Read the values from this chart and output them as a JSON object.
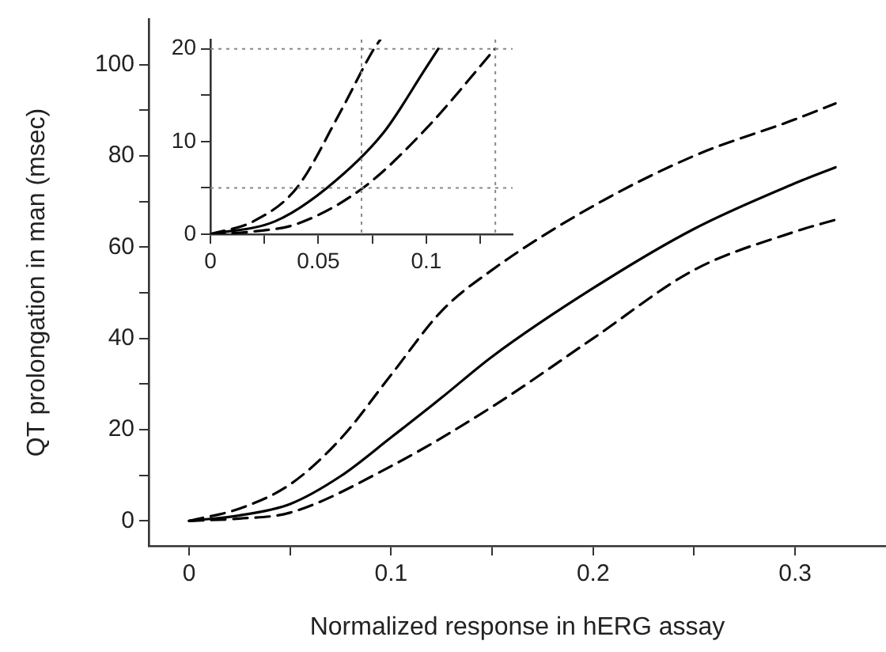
{
  "chart_data": [
    {
      "type": "line",
      "xlabel": "Normalized response in hERG assay",
      "ylabel": "QT prolongation in man (msec)",
      "xlim": [
        -0.02,
        0.345
      ],
      "ylim": [
        -5.5,
        110
      ],
      "xticks": [
        0,
        {
          "value": 0.05,
          "label": null
        },
        0.1,
        {
          "value": 0.15,
          "label": null
        },
        0.2,
        {
          "value": 0.25,
          "label": null
        },
        0.3
      ],
      "yticks": [
        0,
        {
          "value": 10,
          "label": null
        },
        20,
        {
          "value": 30,
          "label": null
        },
        40,
        {
          "value": 50,
          "label": null
        },
        60,
        {
          "value": 70,
          "label": null
        },
        80,
        {
          "value": 90,
          "label": null
        },
        100
      ],
      "grid": false,
      "legend": false,
      "marker": "none",
      "series": [
        {
          "color": "#000000",
          "line_style": "dashed",
          "x": [
            0,
            0.025,
            0.05,
            0.075,
            0.1,
            0.125,
            0.15,
            0.2,
            0.25,
            0.3,
            0.32
          ],
          "values": [
            0,
            2.7,
            8,
            18,
            32,
            46,
            55,
            69,
            80,
            88,
            91.5
          ]
        },
        {
          "color": "#000000",
          "line_style": "solid",
          "x": [
            0,
            0.025,
            0.05,
            0.075,
            0.1,
            0.125,
            0.15,
            0.2,
            0.25,
            0.3,
            0.32
          ],
          "values": [
            0,
            1.2,
            3.7,
            9.8,
            18.3,
            27,
            36,
            51,
            64,
            74,
            77.5
          ]
        },
        {
          "color": "#000000",
          "line_style": "dashed",
          "x": [
            0,
            0.025,
            0.05,
            0.1,
            0.15,
            0.2,
            0.25,
            0.3,
            0.32
          ],
          "values": [
            0,
            0.5,
            1.8,
            12,
            25,
            40,
            55,
            63.4,
            66
          ]
        }
      ]
    },
    {
      "type": "line",
      "xlim": [
        0,
        0.14
      ],
      "ylim": [
        0,
        21
      ],
      "xticks": [
        0,
        {
          "value": 0.025,
          "label": null
        },
        0.05,
        {
          "value": 0.075,
          "label": null
        },
        0.1,
        {
          "value": 0.125,
          "label": null
        }
      ],
      "yticks": [
        0,
        {
          "value": 5,
          "label": null
        },
        10,
        {
          "value": 15,
          "label": null
        },
        20
      ],
      "grid": false,
      "legend": false,
      "marker": "none",
      "ref_lines": [
        {
          "axis": "y",
          "value": 20,
          "color": "#888888",
          "line_style": "dotted"
        },
        {
          "axis": "y",
          "value": 5,
          "color": "#888888",
          "line_style": "dotted"
        },
        {
          "axis": "x",
          "value": 0.07,
          "color": "#888888",
          "line_style": "dotted"
        },
        {
          "axis": "x",
          "value": 0.132,
          "color": "#888888",
          "line_style": "dotted"
        }
      ],
      "series": [
        {
          "color": "#000000",
          "line_style": "dashed",
          "x": [
            0,
            0.02,
            0.04,
            0.06,
            0.075,
            0.0787
          ],
          "values": [
            0,
            1.4,
            5,
            13.1,
            19.7,
            21
          ]
        },
        {
          "color": "#000000",
          "line_style": "solid",
          "x": [
            0,
            0.03,
            0.054,
            0.08,
            0.1,
            0.1056
          ],
          "values": [
            0,
            1.4,
            5,
            10.9,
            18,
            20
          ]
        },
        {
          "color": "#000000",
          "line_style": "dashed",
          "x": [
            0,
            0.02,
            0.04,
            0.0707,
            0.1,
            0.1318
          ],
          "values": [
            0,
            0.3,
            1.1,
            5,
            11.4,
            20
          ]
        }
      ]
    }
  ]
}
